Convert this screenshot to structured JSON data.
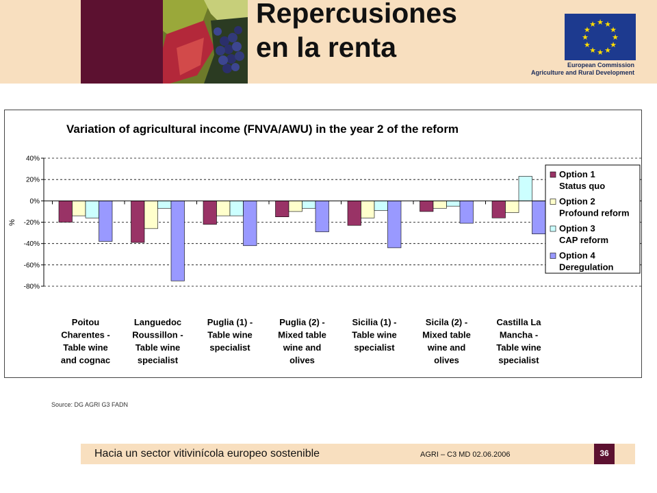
{
  "slide": {
    "title_line1": "Repercusiones",
    "title_line2": "en la renta",
    "eu_line1": "European Commission",
    "eu_line2": "Agriculture and Rural Development",
    "source": "Source: DG AGRI G3 FADN",
    "footer_title": "Hacia un sector vitivinícola europeo sostenible",
    "footer_meta": "AGRI – C3 MD    02.06.2006",
    "page_number": "36"
  },
  "chart_data": {
    "type": "bar",
    "title": "Variation of agricultural income (FNVA/AWU) in the year 2 of the reform",
    "ylabel": "%",
    "ylim": [
      -80,
      40
    ],
    "yticks": [
      "40%",
      "20%",
      "0%",
      "-20%",
      "-40%",
      "-60%",
      "-80%"
    ],
    "ytick_values": [
      40,
      20,
      0,
      -20,
      -40,
      -60,
      -80
    ],
    "grid": true,
    "legend_position": "right",
    "categories": [
      [
        "Poitou",
        "Charentes -",
        "Table wine",
        "and cognac"
      ],
      [
        "Languedoc",
        "Roussillon -",
        "Table wine",
        "specialist"
      ],
      [
        "Puglia (1) -",
        "Table wine",
        "specialist"
      ],
      [
        "Puglia (2) -",
        "Mixed table",
        "wine and",
        "olives"
      ],
      [
        "Sicilia (1) -",
        "Table wine",
        "specialist"
      ],
      [
        "Sicila (2) -",
        "Mixed table",
        "wine and",
        "olives"
      ],
      [
        "Castilla La",
        "Mancha -",
        "Table wine",
        "specialist"
      ]
    ],
    "series": [
      {
        "name": [
          "Option 1",
          "Status quo"
        ],
        "color": "#993366",
        "values": [
          -20,
          -39,
          -22,
          -15,
          -23,
          -10,
          -16
        ]
      },
      {
        "name": [
          "Option 2",
          "Profound reform"
        ],
        "color": "#ffffcc",
        "values": [
          -14,
          -26,
          -14,
          -10,
          -16,
          -7,
          -11
        ]
      },
      {
        "name": [
          "Option 3",
          "CAP reform"
        ],
        "color": "#ccffff",
        "values": [
          -16,
          -7,
          -14,
          -7,
          -9,
          -5,
          23
        ]
      },
      {
        "name": [
          "Option 4",
          "Deregulation"
        ],
        "color": "#9999ff",
        "values": [
          -38,
          -75,
          -42,
          -29,
          -44,
          -21,
          -31
        ]
      }
    ]
  }
}
